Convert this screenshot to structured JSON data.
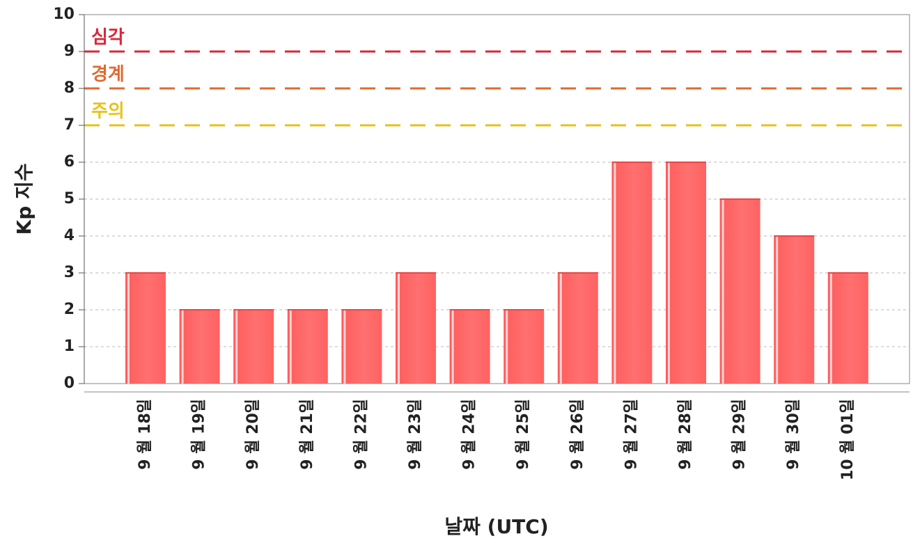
{
  "chart_data": {
    "type": "bar",
    "title": "",
    "xlabel": "날짜 (UTC)",
    "ylabel": "Kp 지수",
    "ylim": [
      0,
      10
    ],
    "yticks": [
      0,
      1,
      2,
      3,
      4,
      5,
      6,
      7,
      8,
      9,
      10
    ],
    "grid": true,
    "categories": [
      "9 월 18일",
      "9 월 19일",
      "9 월 20일",
      "9 월 21일",
      "9 월 22일",
      "9 월 23일",
      "9 월 24일",
      "9 월 25일",
      "9 월 26일",
      "9 월 27일",
      "9 월 28일",
      "9 월 29일",
      "9 월 30일",
      "10 월 01일"
    ],
    "values": [
      3,
      2,
      2,
      2,
      2,
      3,
      2,
      2,
      3,
      6,
      6,
      5,
      4,
      3
    ],
    "bar_color": "#ff6b6b",
    "threshold_lines": [
      {
        "label": "심각",
        "value": 9,
        "color": "#d6283a"
      },
      {
        "label": "경계",
        "value": 8,
        "color": "#e06a2e"
      },
      {
        "label": "주의",
        "value": 7,
        "color": "#e6c21a"
      }
    ]
  }
}
